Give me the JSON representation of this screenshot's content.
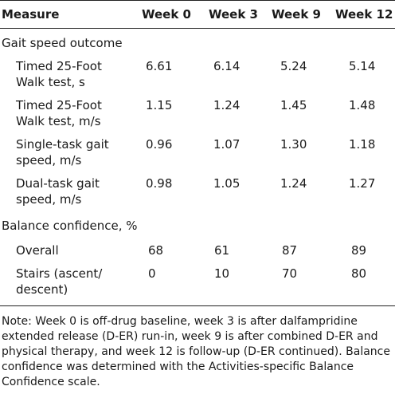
{
  "header": {
    "measure": "Measure",
    "weeks": [
      "Week 0",
      "Week 3",
      "Week 9",
      "Week 12"
    ]
  },
  "sections": [
    {
      "title": "Gait speed outcome",
      "rows": [
        {
          "label": "Timed 25-Foot Walk test, s",
          "values": [
            "6.61",
            "6.14",
            "5.24",
            "5.14"
          ]
        },
        {
          "label": "Timed 25-Foot Walk test, m/s",
          "values": [
            "1.15",
            "1.24",
            "1.45",
            "1.48"
          ]
        },
        {
          "label": "Single-task gait speed, m/s",
          "values": [
            "0.96",
            "1.07",
            "1.30",
            "1.18"
          ]
        },
        {
          "label": "Dual-task gait speed, m/s",
          "values": [
            "0.98",
            "1.05",
            "1.24",
            "1.27"
          ]
        }
      ]
    },
    {
      "title": "Balance confidence, %",
      "rows": [
        {
          "label": "Overall",
          "values": [
            "68",
            "61",
            "87",
            "89"
          ]
        },
        {
          "label": "Stairs (ascent/ descent)",
          "values": [
            "0",
            "10",
            "70",
            "80"
          ]
        }
      ]
    }
  ],
  "note": "Note: Week 0 is off-drug baseline, week 3 is after dalfampridine extended release (D-ER) run-in, week 9 is after combined D-ER and physical therapy, and week 12 is follow-up (D-ER continued). Balance confidence was determined with the Activities-specific Balance Confidence scale."
}
